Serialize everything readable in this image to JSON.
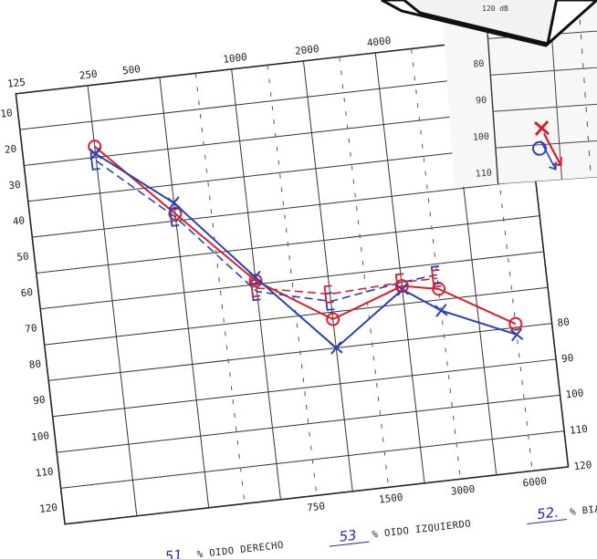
{
  "chart_data": {
    "type": "line",
    "title": "",
    "xlabel": "",
    "ylabel": "",
    "y_unit": "dB",
    "y_axis_direction": "inverted",
    "ylim": [
      0,
      120
    ],
    "x_ticks_top": [
      "125",
      "250",
      "500",
      "1000",
      "2000",
      "4000"
    ],
    "x_ticks_bottom": [
      "750",
      "1500",
      "3000",
      "6000"
    ],
    "y_ticks_left": [
      "10",
      "20",
      "30",
      "40",
      "50",
      "60",
      "70",
      "80",
      "90",
      "100",
      "110",
      "120"
    ],
    "y_ticks_right": [
      "80",
      "90",
      "100",
      "110",
      "120 dB"
    ],
    "x": [
      "250",
      "500",
      "1000",
      "2000",
      "3000",
      "4000",
      "6000"
    ],
    "grid": true,
    "series": [
      {
        "marker": "circle",
        "color": "#d8212b",
        "style": "solid",
        "values": [
          17,
          38,
          59,
          72,
          65,
          67,
          79
        ]
      },
      {
        "marker": "x",
        "color": "#2a3fb8",
        "style": "solid",
        "values": [
          19,
          35,
          58,
          80,
          66,
          73,
          82
        ]
      },
      {
        "marker": "bracket",
        "color": "#2a3fb8",
        "style": "dashed",
        "values": [
          21,
          39,
          62,
          67,
          64,
          63,
          null
        ]
      },
      {
        "marker": "bracket",
        "color": "#d8212b",
        "style": "dashed",
        "values": [
          null,
          null,
          61,
          65,
          64,
          64,
          null
        ]
      }
    ],
    "footer": {
      "right_ear_value": "51",
      "right_ear_label": "% OIDO DERECHO",
      "left_ear_value": "53",
      "left_ear_label": "% OIDO IZQUIERDO",
      "binaural_value": "52.",
      "binaural_label": "% BIAURAL"
    },
    "inset": {
      "header_text": "120 dB",
      "y_ticks": [
        "80",
        "90",
        "100",
        "110",
        "120"
      ]
    }
  }
}
